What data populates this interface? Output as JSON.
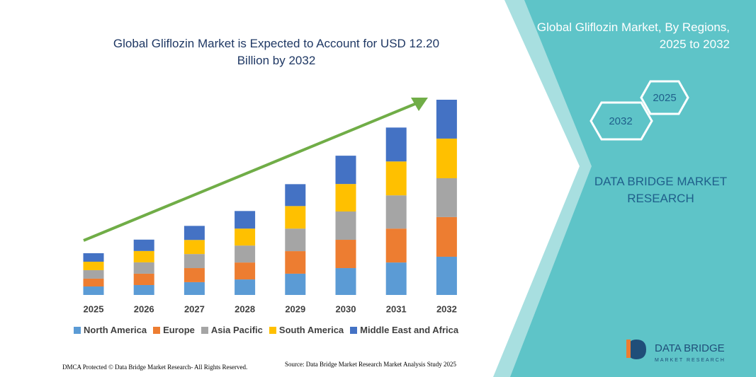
{
  "chart_data": {
    "type": "stacked-bar",
    "title": "Global Gliflozin Market is Expected to Account for USD 12.20 Billion by 2032",
    "categories": [
      "2025",
      "2026",
      "2027",
      "2028",
      "2029",
      "2030",
      "2031",
      "2032"
    ],
    "series": [
      {
        "name": "North America",
        "color": "#5b9bd5",
        "values": [
          0.53,
          0.62,
          0.8,
          0.97,
          1.33,
          1.68,
          2.03,
          2.39
        ]
      },
      {
        "name": "Europe",
        "color": "#ed7d31",
        "values": [
          0.49,
          0.71,
          0.88,
          1.06,
          1.41,
          1.77,
          2.12,
          2.48
        ]
      },
      {
        "name": "Asia Pacific",
        "color": "#a5a5a5",
        "values": [
          0.53,
          0.71,
          0.88,
          1.06,
          1.41,
          1.77,
          2.08,
          2.43
        ]
      },
      {
        "name": "South America",
        "color": "#ffc000",
        "values": [
          0.53,
          0.71,
          0.88,
          1.06,
          1.41,
          1.72,
          2.12,
          2.48
        ]
      },
      {
        "name": "Middle East and Africa",
        "color": "#4472c4",
        "values": [
          0.53,
          0.71,
          0.88,
          1.1,
          1.37,
          1.77,
          2.12,
          2.43
        ]
      }
    ],
    "legend": "bottom"
  },
  "panel": {
    "title": "Global Gliflozin Market, By Regions, 2025 to 2032",
    "hexagons": [
      "2025",
      "2032"
    ],
    "brand": "DATA BRIDGE MARKET RESEARCH"
  },
  "logo": {
    "name": "DATA BRIDGE",
    "tagline": "MARKET RESEARCH"
  },
  "footer": {
    "left": "DMCA Protected © Data Bridge Market Research- All Rights Reserved.",
    "right": "Source: Data Bridge Market Research Market Analysis Study 2025"
  }
}
